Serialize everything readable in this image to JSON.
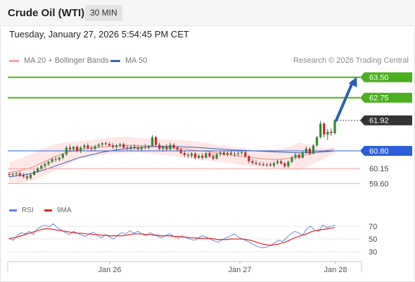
{
  "header": {
    "title": "Crude Oil (WTI)",
    "timeframe": "30 MIN"
  },
  "timestamp": "Tuesday, January 27, 2026 5:54:45 PM CET",
  "legend": {
    "ma20": {
      "label": "MA 20 + Bollinger Bands",
      "color": "#f28b82"
    },
    "ma50": {
      "label": "MA 50",
      "color": "#3b64ad"
    }
  },
  "copyright": "Research © 2026 Trading Central",
  "rsi_legend": {
    "rsi": {
      "label": "RSI",
      "color": "#5b7fd6"
    },
    "ma9": {
      "label": "9MA",
      "color": "#e02424"
    }
  },
  "colors": {
    "up": "#2e8b2e",
    "down": "#c62828",
    "resistance": "#4caf1e",
    "support": "#f5a3a3",
    "pivot": "#2b5fd9",
    "last": "#333333",
    "arrow": "#2b5fb5"
  },
  "chart_data": [
    {
      "type": "candlestick",
      "title": "Crude Oil (WTI)",
      "ylim": [
        59.3,
        63.8
      ],
      "x_ticks": [
        "Jan 26",
        "Jan 27",
        "Jan 28"
      ],
      "candles": [
        [
          59.95,
          60.02,
          59.85,
          59.92
        ],
        [
          59.92,
          60.0,
          59.85,
          59.95
        ],
        [
          59.95,
          60.03,
          59.88,
          59.98
        ],
        [
          59.98,
          60.05,
          59.85,
          59.9
        ],
        [
          59.9,
          59.98,
          59.8,
          59.86
        ],
        [
          59.86,
          59.95,
          59.72,
          59.8
        ],
        [
          59.8,
          59.98,
          59.75,
          59.92
        ],
        [
          59.92,
          60.1,
          59.9,
          60.05
        ],
        [
          60.05,
          60.2,
          60.0,
          60.15
        ],
        [
          60.15,
          60.3,
          60.1,
          60.25
        ],
        [
          60.25,
          60.38,
          60.18,
          60.32
        ],
        [
          60.32,
          60.45,
          60.25,
          60.4
        ],
        [
          60.4,
          60.55,
          60.35,
          60.5
        ],
        [
          60.5,
          60.58,
          60.4,
          60.48
        ],
        [
          60.48,
          60.6,
          60.42,
          60.55
        ],
        [
          60.55,
          60.72,
          60.5,
          60.68
        ],
        [
          60.68,
          60.98,
          60.62,
          60.92
        ],
        [
          60.92,
          61.02,
          60.8,
          60.86
        ],
        [
          60.86,
          60.98,
          60.78,
          60.95
        ],
        [
          60.95,
          61.0,
          60.75,
          60.8
        ],
        [
          60.8,
          60.98,
          60.72,
          60.92
        ],
        [
          60.92,
          61.06,
          60.85,
          61.0
        ],
        [
          61.0,
          61.08,
          60.85,
          60.9
        ],
        [
          60.9,
          61.0,
          60.78,
          60.88
        ],
        [
          60.88,
          61.02,
          60.82,
          60.97
        ],
        [
          60.97,
          61.08,
          60.9,
          61.03
        ],
        [
          61.03,
          61.12,
          60.95,
          61.08
        ],
        [
          61.08,
          61.15,
          61.0,
          61.05
        ],
        [
          61.05,
          61.12,
          60.95,
          61.0
        ],
        [
          61.0,
          61.08,
          60.88,
          60.94
        ],
        [
          60.94,
          61.05,
          60.85,
          61.0
        ],
        [
          61.0,
          61.1,
          60.92,
          61.04
        ],
        [
          61.04,
          61.1,
          60.88,
          60.92
        ],
        [
          60.92,
          61.0,
          60.82,
          60.88
        ],
        [
          60.88,
          61.02,
          60.8,
          60.95
        ],
        [
          60.95,
          61.05,
          60.85,
          60.9
        ],
        [
          60.9,
          61.0,
          60.8,
          60.86
        ],
        [
          60.86,
          60.98,
          60.78,
          60.95
        ],
        [
          60.95,
          61.05,
          60.85,
          60.92
        ],
        [
          60.92,
          61.02,
          60.85,
          60.98
        ],
        [
          60.98,
          61.38,
          60.95,
          61.3
        ],
        [
          61.3,
          61.35,
          60.95,
          61.02
        ],
        [
          61.02,
          61.1,
          60.82,
          60.88
        ],
        [
          60.88,
          61.0,
          60.78,
          60.94
        ],
        [
          60.94,
          61.05,
          60.8,
          60.86
        ],
        [
          60.86,
          61.1,
          60.82,
          61.02
        ],
        [
          61.02,
          61.08,
          60.88,
          60.92
        ],
        [
          60.92,
          60.98,
          60.78,
          60.85
        ],
        [
          60.85,
          60.9,
          60.68,
          60.72
        ],
        [
          60.72,
          60.8,
          60.58,
          60.65
        ],
        [
          60.65,
          60.72,
          60.55,
          60.62
        ],
        [
          60.62,
          60.75,
          60.55,
          60.7
        ],
        [
          60.7,
          60.75,
          60.48,
          60.55
        ],
        [
          60.55,
          60.68,
          60.5,
          60.62
        ],
        [
          60.62,
          60.7,
          60.48,
          60.55
        ],
        [
          60.55,
          60.75,
          60.52,
          60.72
        ],
        [
          60.72,
          60.78,
          60.55,
          60.6
        ],
        [
          60.6,
          60.7,
          60.45,
          60.52
        ],
        [
          60.52,
          60.72,
          60.48,
          60.68
        ],
        [
          60.68,
          60.8,
          60.6,
          60.74
        ],
        [
          60.74,
          60.8,
          60.62,
          60.66
        ],
        [
          60.66,
          60.78,
          60.6,
          60.73
        ],
        [
          60.73,
          60.8,
          60.62,
          60.68
        ],
        [
          60.68,
          60.76,
          60.58,
          60.7
        ],
        [
          60.7,
          60.78,
          60.6,
          60.72
        ],
        [
          60.72,
          60.8,
          60.65,
          60.75
        ],
        [
          60.75,
          60.8,
          60.55,
          60.6
        ],
        [
          60.6,
          60.65,
          60.35,
          60.42
        ],
        [
          60.42,
          60.5,
          60.3,
          60.36
        ],
        [
          60.36,
          60.45,
          60.28,
          60.32
        ],
        [
          60.32,
          60.4,
          60.26,
          60.3
        ],
        [
          60.3,
          60.38,
          60.24,
          60.28
        ],
        [
          60.28,
          60.35,
          60.22,
          60.3
        ],
        [
          60.3,
          60.38,
          60.22,
          60.26
        ],
        [
          60.26,
          60.4,
          60.2,
          60.35
        ],
        [
          60.35,
          60.48,
          60.3,
          60.42
        ],
        [
          60.42,
          60.48,
          60.3,
          60.34
        ],
        [
          60.34,
          60.4,
          60.18,
          60.24
        ],
        [
          60.24,
          60.45,
          60.18,
          60.4
        ],
        [
          60.4,
          60.62,
          60.35,
          60.56
        ],
        [
          60.56,
          60.72,
          60.48,
          60.66
        ],
        [
          60.66,
          60.7,
          60.5,
          60.55
        ],
        [
          60.55,
          60.8,
          60.52,
          60.75
        ],
        [
          60.75,
          60.95,
          60.7,
          60.88
        ],
        [
          60.88,
          60.92,
          60.65,
          60.7
        ],
        [
          60.7,
          61.05,
          60.68,
          61.0
        ],
        [
          61.0,
          61.35,
          60.95,
          61.3
        ],
        [
          61.3,
          61.9,
          61.25,
          61.8
        ],
        [
          61.8,
          61.85,
          61.3,
          61.4
        ],
        [
          61.4,
          61.6,
          61.2,
          61.5
        ],
        [
          61.5,
          61.62,
          61.35,
          61.45
        ],
        [
          61.45,
          61.95,
          61.4,
          61.92
        ]
      ],
      "bollinger": {
        "upper": [
          60.4,
          60.52,
          60.7,
          60.9,
          61.05,
          61.12,
          61.15,
          61.2,
          61.25,
          61.3,
          61.32,
          61.28,
          61.25,
          61.22,
          61.2,
          61.18,
          61.15,
          61.1,
          61.0,
          60.95,
          60.92,
          60.85,
          60.8,
          60.85,
          60.95,
          61.1,
          61.0,
          60.9,
          60.85
        ],
        "middle": [
          60.0,
          60.08,
          60.2,
          60.4,
          60.6,
          60.75,
          60.85,
          60.9,
          60.95,
          60.98,
          61.0,
          61.0,
          60.98,
          60.95,
          60.9,
          60.88,
          60.82,
          60.78,
          60.72,
          60.65,
          60.6,
          60.55,
          60.5,
          60.48,
          60.52,
          60.6,
          60.7,
          60.8,
          60.88
        ],
        "lower": [
          59.6,
          59.62,
          59.7,
          59.9,
          60.1,
          60.3,
          60.5,
          60.6,
          60.65,
          60.7,
          60.72,
          60.75,
          60.7,
          60.66,
          60.62,
          60.55,
          60.5,
          60.45,
          60.4,
          60.35,
          60.28,
          60.22,
          60.2,
          60.15,
          60.1,
          60.1,
          60.3,
          60.5,
          60.7
        ]
      },
      "ma50": [
        59.85,
        59.9,
        59.98,
        60.1,
        60.25,
        60.4,
        60.55,
        60.65,
        60.75,
        60.82,
        60.88,
        60.92,
        60.95,
        60.96,
        60.96,
        60.95,
        60.93,
        60.9,
        60.87,
        60.84,
        60.82,
        60.8,
        60.78,
        60.76,
        60.74,
        60.73,
        60.74,
        60.76,
        60.8
      ],
      "levels": [
        {
          "value": 63.5,
          "label": "63.50",
          "kind": "resistance"
        },
        {
          "value": 62.75,
          "label": "62.75",
          "kind": "resistance"
        },
        {
          "value": 61.92,
          "label": "61.92",
          "kind": "last"
        },
        {
          "value": 60.8,
          "label": "60.80",
          "kind": "pivot"
        },
        {
          "value": 60.15,
          "label": "60.15",
          "kind": "support"
        },
        {
          "value": 59.6,
          "label": "59.60",
          "kind": "support"
        }
      ],
      "arrow": {
        "from": [
          61.92
        ],
        "to": [
          63.5
        ]
      }
    },
    {
      "type": "line",
      "title": "RSI",
      "ylim": [
        20,
        80
      ],
      "y_ticks": [
        70,
        50,
        30
      ],
      "series": [
        {
          "name": "RSI",
          "values": [
            52,
            48,
            55,
            60,
            58,
            62,
            57,
            66,
            70,
            72,
            69,
            74,
            68,
            64,
            60,
            57,
            62,
            59,
            56,
            54,
            58,
            61,
            55,
            52,
            57,
            53,
            50,
            56,
            60,
            58,
            63,
            59,
            62,
            58,
            55,
            60,
            57,
            54,
            52,
            56,
            58,
            54,
            51,
            55,
            52,
            50,
            48,
            52,
            55,
            53,
            50,
            47,
            45,
            49,
            52,
            55,
            58,
            53,
            50,
            47,
            44,
            40,
            38,
            36,
            37,
            40,
            44,
            48,
            46,
            52,
            58,
            62,
            60,
            56,
            66,
            70,
            64,
            62,
            72,
            68,
            70,
            72
          ]
        },
        {
          "name": "9MA",
          "values": [
            50,
            52,
            53,
            55,
            57,
            59,
            61,
            63,
            65,
            66,
            66,
            65,
            64,
            63,
            62,
            61,
            60,
            59,
            59,
            58,
            58,
            57,
            57,
            56,
            56,
            55,
            55,
            55,
            55,
            56,
            57,
            58,
            58,
            58,
            57,
            57,
            56,
            56,
            55,
            55,
            55,
            54,
            54,
            53,
            53,
            52,
            52,
            51,
            51,
            51,
            51,
            50,
            49,
            49,
            49,
            50,
            50,
            50,
            50,
            49,
            48,
            46,
            44,
            42,
            41,
            40,
            41,
            42,
            44,
            46,
            49,
            52,
            54,
            56,
            58,
            61,
            63,
            64,
            65,
            66,
            67,
            68
          ]
        }
      ]
    }
  ]
}
